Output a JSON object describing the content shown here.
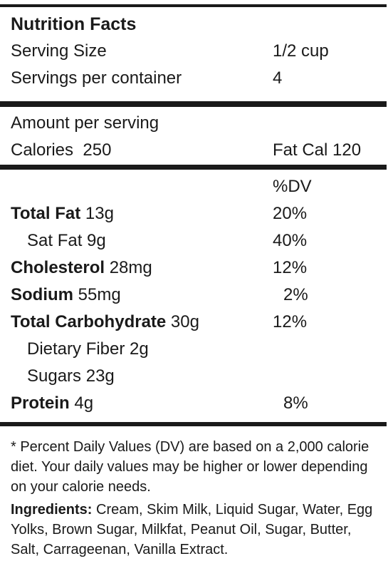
{
  "title": "Nutrition Facts",
  "serving": {
    "size_label": "Serving Size",
    "size_value": "1/2 cup",
    "per_container_label": "Servings per container",
    "per_container_value": "4"
  },
  "calories": {
    "amount_label": "Amount per serving",
    "calories_label": "Calories",
    "calories_value": "250",
    "fat_cal": "Fat Cal 120"
  },
  "dv_header": "%DV",
  "nutrients": [
    {
      "name": "Total Fat",
      "amount": "13g",
      "dv": "20%"
    },
    {
      "name": "Sat Fat",
      "amount": "9g",
      "dv": "40%"
    },
    {
      "name": "Cholesterol",
      "amount": "28mg",
      "dv": "12%"
    },
    {
      "name": "Sodium",
      "amount": "55mg",
      "dv": "2%"
    },
    {
      "name": "Total Carbohydrate",
      "amount": "30g",
      "dv": "12%"
    },
    {
      "name": "Dietary Fiber",
      "amount": "2g",
      "dv": ""
    },
    {
      "name": "Sugars",
      "amount": "23g",
      "dv": ""
    },
    {
      "name": "Protein",
      "amount": "4g",
      "dv": "8%"
    }
  ],
  "footnote": "* Percent Daily Values (DV) are based on a 2,000 calorie diet. Your daily values may be higher or lower depending on your calorie needs.",
  "ingredients": {
    "label": "Ingredients:",
    "text": " Cream, Skim Milk, Liquid Sugar, Water, Egg Yolks, Brown Sugar, Milkfat, Peanut Oil, Sugar, Butter, Salt, Carrageenan, Vanilla Extract."
  }
}
